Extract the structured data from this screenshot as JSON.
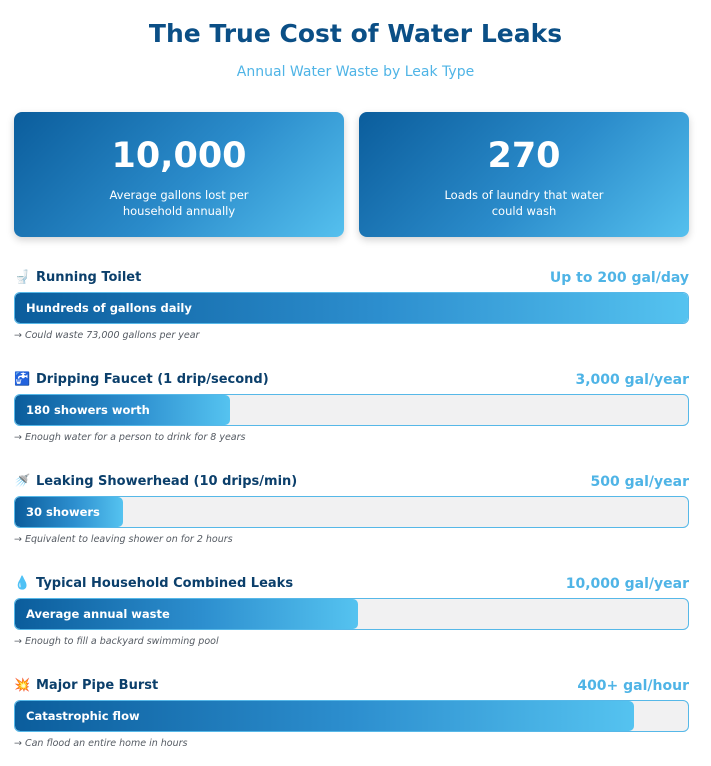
{
  "header": {
    "title": "The True Cost of Water Leaks",
    "subtitle": "Annual Water Waste by Leak Type"
  },
  "stats": [
    {
      "value": "10,000",
      "label": "Average gallons lost per household annually"
    },
    {
      "value": "270",
      "label": "Loads of laundry that water could wash"
    }
  ],
  "chart_data": {
    "type": "bar",
    "orientation": "horizontal",
    "categories": [
      "Running Toilet",
      "Dripping Faucet (1 drip/second)",
      "Leaking Showerhead (10 drips/min)",
      "Typical Household Combined Leaks",
      "Major Pipe Burst"
    ],
    "values": [
      100,
      32,
      16,
      51,
      92
    ],
    "value_labels": [
      "Up to 200 gal/day",
      "3,000 gal/year",
      "500 gal/year",
      "10,000 gal/year",
      "400+ gal/hour"
    ],
    "bar_text": [
      "Hundreds of gallons daily",
      "180 showers worth",
      "30 showers",
      "Average annual waste",
      "Catastrophic flow"
    ],
    "notes": [
      "→ Could waste 73,000 gallons per year",
      "→ Enough water for a person to drink for 8 years",
      "→ Equivalent to leaving shower on for 2 hours",
      "→ Enough to fill a backyard swimming pool",
      "→ Can flood an entire home in hours"
    ],
    "icons": [
      "toilet-icon",
      "faucet-icon",
      "shower-icon",
      "droplet-icon",
      "burst-icon"
    ],
    "xlim": [
      0,
      100
    ]
  }
}
